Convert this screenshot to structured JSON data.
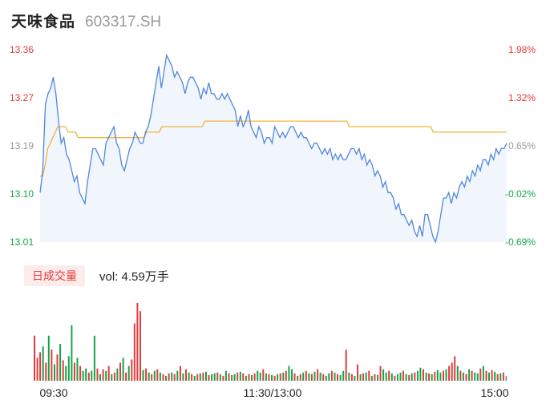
{
  "header": {
    "name": "天味食品",
    "code": "603317.SH"
  },
  "volume_panel": {
    "tab_label": "日成交量",
    "vol_text": "vol: 4.59万手"
  },
  "colors": {
    "price": "#4f86e0",
    "avg": "#f2b43c",
    "up": "#e63a3a",
    "down": "#17a34a",
    "neutral": "#999999",
    "fill": "#eef3fb"
  },
  "chart_data": [
    {
      "type": "line",
      "title": "",
      "y_ticks": [
        "13.36",
        "13.27",
        "13.19",
        "13.10",
        "13.01"
      ],
      "y_ticks_right": [
        "1.98%",
        "1.32%",
        "0.65%",
        "-0.02%",
        "-0.69%"
      ],
      "x_ticks": [
        "09:30",
        "11:30/13:00",
        "15:00"
      ],
      "ylim": [
        13.01,
        13.36
      ],
      "series": [
        {
          "values": [
            13.1,
            13.14,
            13.26,
            13.28,
            13.29,
            13.31,
            13.28,
            13.23,
            13.19,
            13.2,
            13.17,
            13.16,
            13.14,
            13.12,
            13.13,
            13.1,
            13.09,
            13.08,
            13.12,
            13.15,
            13.18,
            13.18,
            13.17,
            13.16,
            13.15,
            13.19,
            13.2,
            13.21,
            13.22,
            13.19,
            13.18,
            13.15,
            13.14,
            13.16,
            13.18,
            13.19,
            13.21,
            13.2,
            13.19,
            13.19,
            13.21,
            13.22,
            13.24,
            13.27,
            13.3,
            13.33,
            13.29,
            13.32,
            13.35,
            13.34,
            13.33,
            13.31,
            13.32,
            13.31,
            13.3,
            13.28,
            13.3,
            13.31,
            13.31,
            13.3,
            13.29,
            13.27,
            13.29,
            13.28,
            13.3,
            13.28,
            13.28,
            13.27,
            13.27,
            13.28,
            13.27,
            13.28,
            13.27,
            13.26,
            13.25,
            13.22,
            13.24,
            13.22,
            13.23,
            13.25,
            13.22,
            13.21,
            13.2,
            13.22,
            13.21,
            13.19,
            13.2,
            13.2,
            13.19,
            13.22,
            13.21,
            13.2,
            13.21,
            13.2,
            13.21,
            13.22,
            13.22,
            13.21,
            13.2,
            13.21,
            13.2,
            13.2,
            13.19,
            13.18,
            13.19,
            13.19,
            13.18,
            13.17,
            13.18,
            13.17,
            13.18,
            13.16,
            13.17,
            13.16,
            13.17,
            13.16,
            13.16,
            13.17,
            13.18,
            13.18,
            13.17,
            13.18,
            13.16,
            13.17,
            13.15,
            13.16,
            13.15,
            13.13,
            13.14,
            13.13,
            13.11,
            13.12,
            13.1,
            13.1,
            13.09,
            13.07,
            13.08,
            13.06,
            13.06,
            13.05,
            13.04,
            13.05,
            13.03,
            13.02,
            13.04,
            13.02,
            13.06,
            13.06,
            13.04,
            13.02,
            13.01,
            13.03,
            13.06,
            13.09,
            13.09,
            13.1,
            13.08,
            13.1,
            13.09,
            13.11,
            13.12,
            13.11,
            13.13,
            13.12,
            13.14,
            13.13,
            13.15,
            13.14,
            13.16,
            13.16,
            13.15,
            13.17,
            13.16,
            13.18,
            13.17,
            13.18,
            13.18,
            13.19
          ]
        },
        {
          "values": [
            13.13,
            13.13,
            13.15,
            13.18,
            13.19,
            13.2,
            13.21,
            13.22,
            13.22,
            13.22,
            13.22,
            13.21,
            13.21,
            13.21,
            13.21,
            13.2,
            13.2,
            13.2,
            13.2,
            13.2,
            13.2,
            13.2,
            13.2,
            13.2,
            13.2,
            13.2,
            13.2,
            13.2,
            13.2,
            13.2,
            13.2,
            13.2,
            13.2,
            13.2,
            13.2,
            13.2,
            13.2,
            13.2,
            13.2,
            13.2,
            13.2,
            13.2,
            13.21,
            13.21,
            13.21,
            13.21,
            13.21,
            13.21,
            13.22,
            13.22,
            13.22,
            13.22,
            13.22,
            13.22,
            13.22,
            13.22,
            13.22,
            13.22,
            13.22,
            13.22,
            13.22,
            13.22,
            13.22,
            13.22,
            13.22,
            13.23,
            13.23,
            13.23,
            13.23,
            13.23,
            13.23,
            13.23,
            13.23,
            13.23,
            13.23,
            13.23,
            13.23,
            13.23,
            13.23,
            13.23,
            13.23,
            13.23,
            13.23,
            13.23,
            13.23,
            13.23,
            13.23,
            13.23,
            13.23,
            13.23,
            13.23,
            13.23,
            13.23,
            13.23,
            13.23,
            13.23,
            13.23,
            13.23,
            13.23,
            13.23,
            13.23,
            13.23,
            13.23,
            13.23,
            13.23,
            13.23,
            13.23,
            13.23,
            13.23,
            13.23,
            13.23,
            13.23,
            13.23,
            13.23,
            13.23,
            13.23,
            13.23,
            13.23,
            13.23,
            13.23,
            13.23,
            13.23,
            13.22,
            13.22,
            13.22,
            13.22,
            13.22,
            13.22,
            13.22,
            13.22,
            13.22,
            13.22,
            13.22,
            13.22,
            13.22,
            13.22,
            13.22,
            13.22,
            13.22,
            13.22,
            13.22,
            13.22,
            13.22,
            13.22,
            13.22,
            13.22,
            13.22,
            13.22,
            13.22,
            13.22,
            13.22,
            13.22,
            13.22,
            13.22,
            13.22,
            13.21,
            13.21,
            13.21,
            13.21,
            13.21,
            13.21,
            13.21,
            13.21,
            13.21,
            13.21,
            13.21,
            13.21,
            13.21,
            13.21,
            13.21,
            13.21,
            13.21,
            13.21,
            13.21,
            13.21,
            13.21,
            13.21,
            13.21,
            13.21,
            13.21,
            13.21,
            13.21,
            13.21,
            13.21,
            13.21
          ]
        }
      ]
    },
    {
      "type": "bar",
      "title": "",
      "series": [
        {
          "values": [
            55,
            28,
            35,
            42,
            22,
            55,
            38,
            20,
            32,
            45,
            25,
            18,
            30,
            68,
            22,
            28,
            18,
            12,
            15,
            10,
            12,
            55,
            15,
            8,
            14,
            12,
            18,
            8,
            10,
            15,
            22,
            28,
            10,
            18,
            26,
            70,
            95,
            85,
            13,
            15,
            10,
            8,
            12,
            14,
            10,
            8,
            6,
            9,
            10,
            8,
            12,
            18,
            9,
            14,
            10,
            8,
            6,
            8,
            9,
            10,
            11,
            7,
            8,
            9,
            10,
            8,
            6,
            12,
            9,
            7,
            8,
            10,
            11,
            9,
            6,
            8,
            7,
            9,
            12,
            10,
            14,
            9,
            8,
            7,
            6,
            8,
            9,
            10,
            12,
            18,
            14,
            9,
            6,
            8,
            10,
            12,
            9,
            8,
            11,
            14,
            10,
            8,
            6,
            9,
            12,
            10,
            8,
            7,
            12,
            38,
            10,
            8,
            6,
            20,
            8,
            9,
            10,
            12,
            6,
            8,
            7,
            18,
            14,
            10,
            12,
            9,
            6,
            8,
            10,
            12,
            8,
            7,
            9,
            10,
            12,
            16,
            14,
            10,
            9,
            8,
            11,
            13,
            10,
            12,
            14,
            18,
            22,
            30,
            18,
            12,
            10,
            8,
            14,
            12,
            10,
            9,
            15,
            18,
            12,
            10,
            13,
            11,
            8,
            9,
            10,
            6
          ],
          "colors": [
            "up",
            "up",
            "up",
            "down",
            "up",
            "down",
            "up",
            "down",
            "up",
            "down",
            "up",
            "down",
            "down",
            "down",
            "up",
            "down",
            "up",
            "down",
            "down",
            "up",
            "down",
            "down",
            "up",
            "down",
            "up",
            "down",
            "up",
            "down",
            "up",
            "down",
            "up",
            "down",
            "up",
            "down",
            "up",
            "up",
            "up",
            "up",
            "down",
            "up",
            "down",
            "up",
            "down",
            "up",
            "down",
            "up",
            "down",
            "up",
            "down",
            "up",
            "down",
            "up",
            "down",
            "up",
            "down",
            "up",
            "down",
            "up",
            "down",
            "up",
            "down",
            "up",
            "down",
            "down",
            "up",
            "down",
            "up",
            "down",
            "up",
            "down",
            "down",
            "up",
            "down",
            "up",
            "down",
            "up",
            "down",
            "up",
            "down",
            "down",
            "up",
            "down",
            "up",
            "down",
            "up",
            "down",
            "up",
            "down",
            "up",
            "down",
            "down",
            "up",
            "down",
            "up",
            "down",
            "up",
            "down",
            "up",
            "down",
            "up",
            "down",
            "up",
            "down",
            "down",
            "up",
            "down",
            "up",
            "down",
            "down",
            "up",
            "down",
            "up",
            "down",
            "up",
            "down",
            "up",
            "down",
            "up",
            "down",
            "up",
            "down",
            "up",
            "down",
            "down",
            "up",
            "down",
            "up",
            "down",
            "down",
            "up",
            "down",
            "up",
            "down",
            "up",
            "down",
            "down",
            "up",
            "down",
            "up",
            "down",
            "up",
            "down",
            "down",
            "up",
            "down",
            "up",
            "up",
            "up",
            "down",
            "up",
            "down",
            "up",
            "down",
            "up",
            "down",
            "down",
            "up",
            "down",
            "up",
            "down",
            "up",
            "down",
            "up",
            "down",
            "up",
            "neutral"
          ]
        }
      ]
    }
  ]
}
